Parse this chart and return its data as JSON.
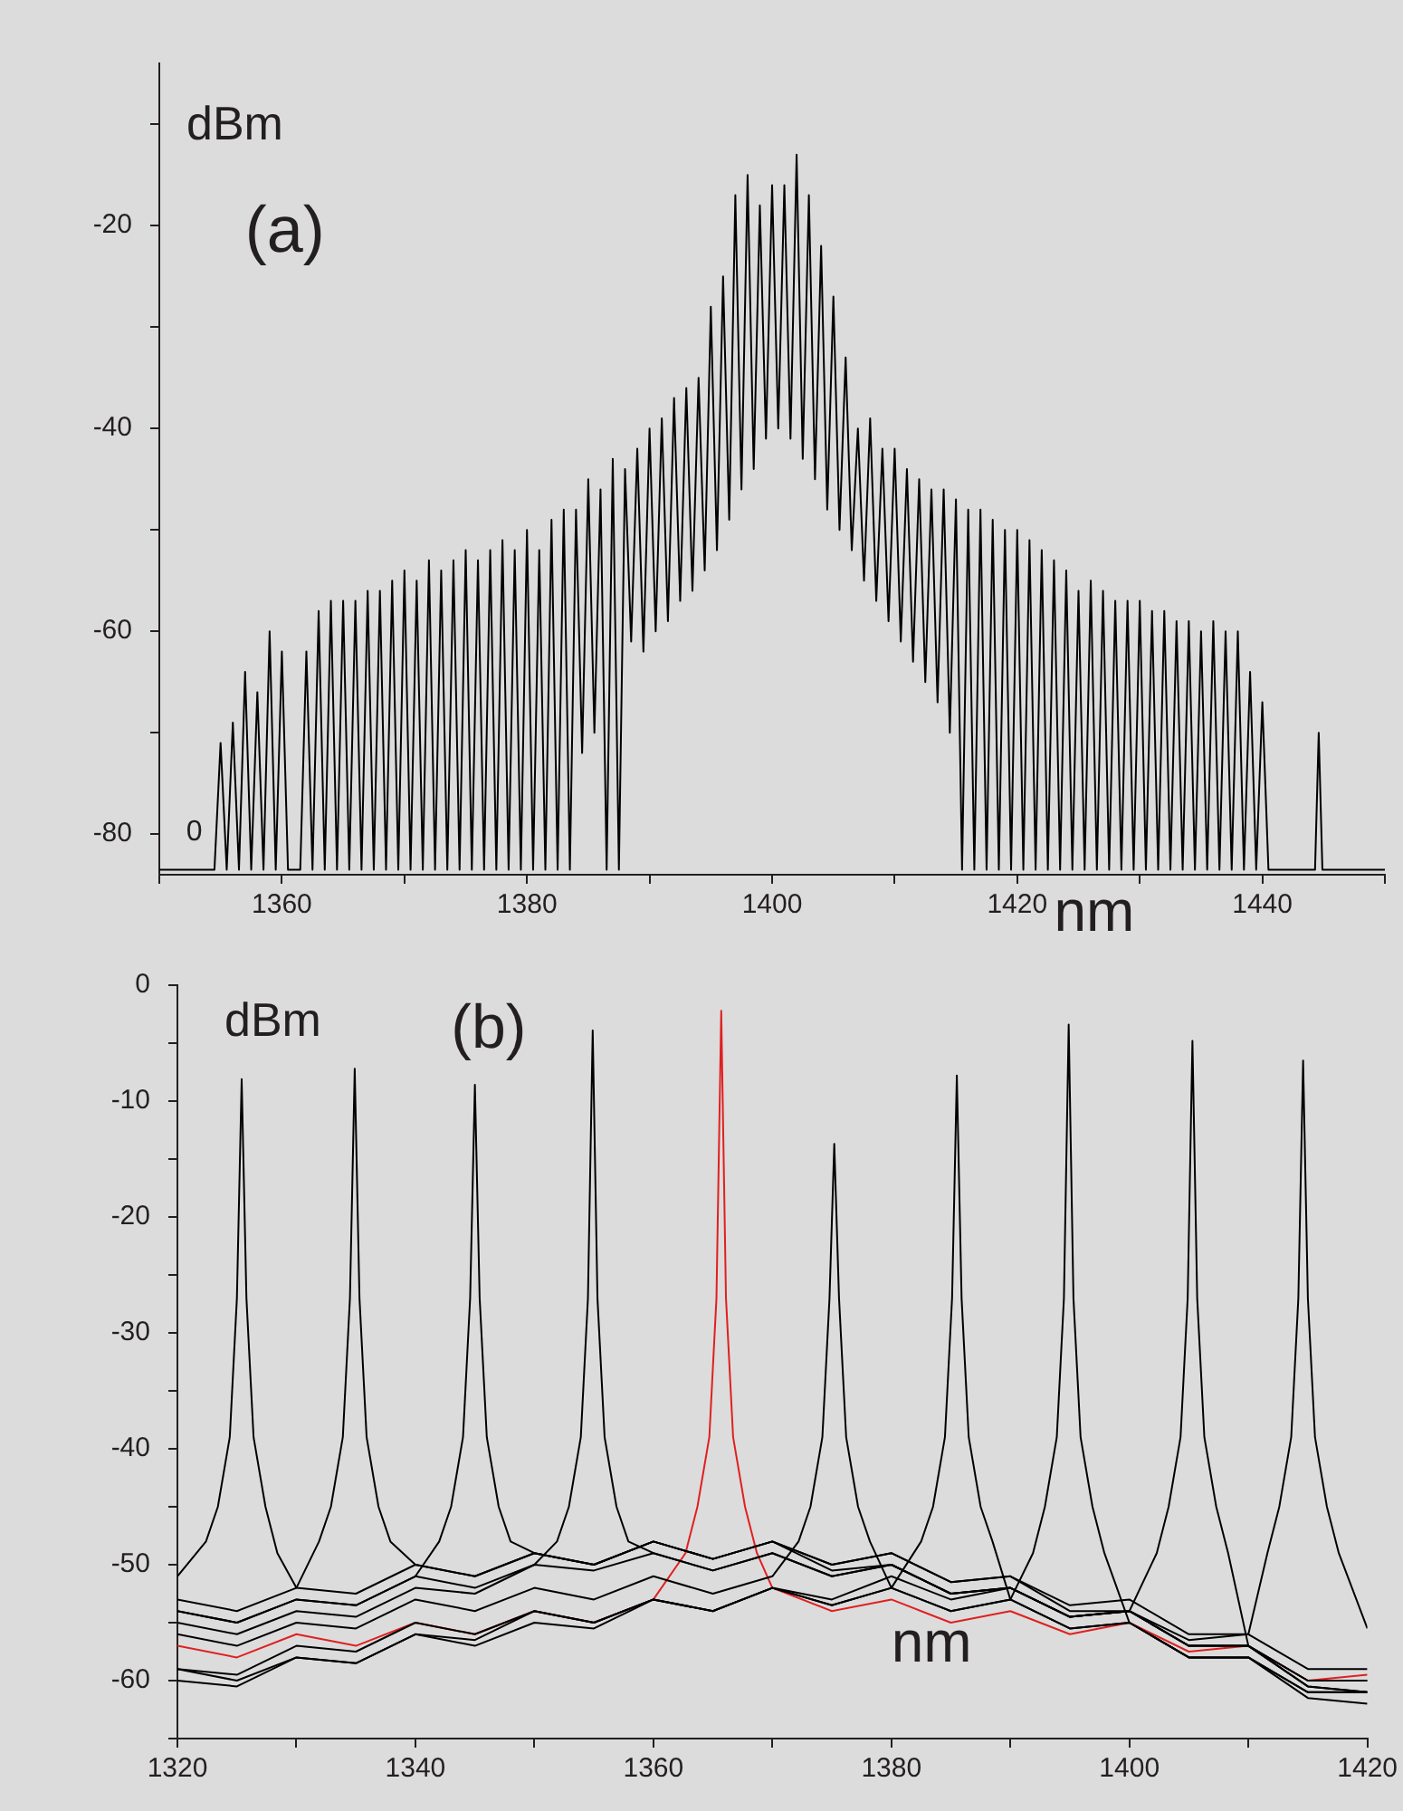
{
  "chart_data": [
    {
      "type": "line",
      "xlabel": "nm",
      "ylabel": "dBm",
      "annotations": [
        "(a)",
        "0"
      ],
      "marker": "none",
      "line_style": "solid",
      "legend": false,
      "xlim": [
        1350,
        1450
      ],
      "xticks": [
        {
          "value": 1350,
          "label": null
        },
        1360,
        {
          "value": 1370,
          "label": null
        },
        1380,
        {
          "value": 1390,
          "label": null
        },
        1400,
        {
          "value": 1410,
          "label": null
        },
        1420,
        {
          "value": 1430,
          "label": null
        },
        1440,
        {
          "value": 1450,
          "label": null
        }
      ],
      "ylim": [
        -84,
        -4
      ],
      "yticks": [
        -80,
        {
          "value": -70,
          "label": null
        },
        -60,
        {
          "value": -50,
          "label": null
        },
        -40,
        {
          "value": -30,
          "label": null
        },
        -20,
        {
          "value": -10,
          "label": null
        }
      ],
      "series": [
        {
          "color": "#000000",
          "x": [
            1350,
            1354.5,
            1355,
            1355.5,
            1356,
            1356.5,
            1357,
            1357.5,
            1358,
            1358.5,
            1359,
            1359.5,
            1360,
            1360.5,
            1361.5,
            1362,
            1362.5,
            1363,
            1363.5,
            1364,
            1364.5,
            1365,
            1365.5,
            1366,
            1366.5,
            1367,
            1367.5,
            1368,
            1368.5,
            1369,
            1369.5,
            1370,
            1370.5,
            1371,
            1371.5,
            1372,
            1372.5,
            1373,
            1373.5,
            1374,
            1374.5,
            1375,
            1375.5,
            1376,
            1376.5,
            1377,
            1377.5,
            1378,
            1378.5,
            1379,
            1379.5,
            1380,
            1380.5,
            1381,
            1381.5,
            1382,
            1382.5,
            1383,
            1383.5,
            1384,
            1384.5,
            1385,
            1385.5,
            1386,
            1386.5,
            1387,
            1387.5,
            1388,
            1388.5,
            1389,
            1389.5,
            1390,
            1390.5,
            1391,
            1391.5,
            1392,
            1392.5,
            1393,
            1393.5,
            1394,
            1394.5,
            1395,
            1395.5,
            1396,
            1396.5,
            1397,
            1397.5,
            1398,
            1398.5,
            1399,
            1399.5,
            1400,
            1400.5,
            1401,
            1401.5,
            1402,
            1402.5,
            1403,
            1403.5,
            1404,
            1404.5,
            1405,
            1405.5,
            1406,
            1406.5,
            1407,
            1407.5,
            1408,
            1408.5,
            1409,
            1409.5,
            1410,
            1410.5,
            1411,
            1411.5,
            1412,
            1412.5,
            1413,
            1413.5,
            1414,
            1414.5,
            1415,
            1415.5,
            1416,
            1416.5,
            1417,
            1417.5,
            1418,
            1418.5,
            1419,
            1419.5,
            1420,
            1420.5,
            1421,
            1421.5,
            1422,
            1422.5,
            1423,
            1423.5,
            1424,
            1424.5,
            1425,
            1425.5,
            1426,
            1426.5,
            1427,
            1427.5,
            1428,
            1428.5,
            1429,
            1429.5,
            1430,
            1430.5,
            1431,
            1431.5,
            1432,
            1432.5,
            1433,
            1433.5,
            1434,
            1434.5,
            1435,
            1435.5,
            1436,
            1436.5,
            1437,
            1437.5,
            1438,
            1438.5,
            1439,
            1439.5,
            1440,
            1440.5,
            1444.3,
            1444.6,
            1444.9,
            1450
          ],
          "values": [
            -83.5,
            -83.5,
            -71,
            -83.5,
            -69,
            -83.5,
            -64,
            -83.5,
            -66,
            -83.5,
            -60,
            -83.5,
            -62,
            -83.5,
            -83.5,
            -62,
            -83.5,
            -58,
            -83.5,
            -57,
            -83.5,
            -57,
            -83.5,
            -57,
            -83.5,
            -56,
            -83.5,
            -56,
            -83.5,
            -55,
            -83.5,
            -54,
            -83.5,
            -55,
            -83.5,
            -53,
            -83.5,
            -54,
            -83.5,
            -53,
            -83.5,
            -52,
            -83.5,
            -53,
            -83.5,
            -52,
            -83.5,
            -51,
            -83.5,
            -52,
            -83.5,
            -50,
            -83.5,
            -52,
            -83.5,
            -49,
            -83.5,
            -48,
            -83.5,
            -48,
            -72,
            -45,
            -70,
            -46,
            -83.5,
            -43,
            -83.5,
            -44,
            -61,
            -42,
            -62,
            -40,
            -60,
            -39,
            -59,
            -37,
            -57,
            -36,
            -56,
            -35,
            -54,
            -28,
            -52,
            -25,
            -49,
            -17,
            -46,
            -15,
            -44,
            -18,
            -41,
            -16,
            -40,
            -16,
            -41,
            -13,
            -43,
            -17,
            -45,
            -22,
            -48,
            -27,
            -50,
            -33,
            -52,
            -40,
            -55,
            -39,
            -57,
            -42,
            -59,
            -42,
            -61,
            -44,
            -63,
            -45,
            -65,
            -46,
            -67,
            -46,
            -70,
            -47,
            -83.5,
            -48,
            -83.5,
            -48,
            -83.5,
            -49,
            -83.5,
            -50,
            -83.5,
            -50,
            -83.5,
            -51,
            -83.5,
            -52,
            -83.5,
            -53,
            -83.5,
            -54,
            -83.5,
            -56,
            -83.5,
            -55,
            -83.5,
            -56,
            -83.5,
            -57,
            -83.5,
            -57,
            -83.5,
            -57,
            -83.5,
            -58,
            -83.5,
            -58,
            -83.5,
            -59,
            -83.5,
            -59,
            -83.5,
            -60,
            -83.5,
            -59,
            -83.5,
            -60,
            -83.5,
            -60,
            -83.5,
            -64,
            -83.5,
            -67,
            -83.5,
            -83.5,
            -70,
            -83.5,
            -83.5
          ]
        }
      ]
    },
    {
      "type": "line",
      "xlabel": "nm",
      "ylabel": "dBm",
      "annotations": [
        "(b)"
      ],
      "marker": "none",
      "line_style": "solid",
      "legend": false,
      "xlim": [
        1320,
        1420
      ],
      "xticks": [
        1320,
        {
          "value": 1330,
          "label": null
        },
        1340,
        {
          "value": 1350,
          "label": null
        },
        1360,
        {
          "value": 1370,
          "label": null
        },
        1380,
        {
          "value": 1390,
          "label": null
        },
        1400,
        {
          "value": 1410,
          "label": null
        },
        1420
      ],
      "ylim": [
        -65,
        0
      ],
      "yticks": [
        {
          "value": -65,
          "label": null
        },
        -60,
        {
          "value": -55,
          "label": null
        },
        -50,
        {
          "value": -45,
          "label": null
        },
        -40,
        {
          "value": -35,
          "label": null
        },
        -30,
        {
          "value": -25,
          "label": null
        },
        -20,
        {
          "value": -15,
          "label": null
        },
        -10,
        {
          "value": -5,
          "label": null
        },
        0
      ],
      "series": [
        {
          "color": "#000000",
          "x": [
            1320,
            1322.4,
            1323.4,
            1324.4,
            1325,
            1325.4,
            1325.8,
            1326.4,
            1327.4,
            1328.4,
            1330,
            1335,
            1340,
            1345,
            1350,
            1355,
            1360,
            1365,
            1370,
            1375,
            1380,
            1385,
            1390,
            1395,
            1400,
            1405,
            1410,
            1415,
            1420
          ],
          "values": [
            -51,
            -48,
            -45,
            -39,
            -27,
            -8.1,
            -27,
            -39,
            -45,
            -49,
            -52,
            -52.5,
            -50,
            -51,
            -49,
            -50,
            -48,
            -49.5,
            -48,
            -50,
            -49,
            -51.5,
            -51,
            -53.5,
            -53,
            -56,
            -56,
            -59,
            -59
          ]
        },
        {
          "color": "#000000",
          "x": [
            1320,
            1325,
            1330,
            1331.9,
            1332.9,
            1333.9,
            1334.5,
            1334.9,
            1335.3,
            1335.9,
            1336.9,
            1337.9,
            1340,
            1345,
            1350,
            1355,
            1360,
            1365,
            1370,
            1375,
            1380,
            1385,
            1390,
            1395,
            1400,
            1405,
            1410,
            1415,
            1420
          ],
          "values": [
            -53,
            -54,
            -52,
            -48,
            -45,
            -39,
            -27,
            -7.2,
            -27,
            -39,
            -45,
            -48,
            -50,
            -51,
            -49,
            -50,
            -48,
            -49.5,
            -48,
            -50,
            -49,
            -51.5,
            -51,
            -54,
            -54,
            -57,
            -57,
            -60,
            -60
          ]
        },
        {
          "color": "#000000",
          "x": [
            1320,
            1325,
            1330,
            1335,
            1340,
            1342,
            1343,
            1344,
            1344.6,
            1345,
            1345.4,
            1346,
            1347,
            1348,
            1350,
            1355,
            1360,
            1365,
            1370,
            1375,
            1380,
            1385,
            1390,
            1395,
            1400,
            1405,
            1410,
            1415,
            1420
          ],
          "values": [
            -54,
            -55,
            -53,
            -53.5,
            -51,
            -48,
            -45,
            -39,
            -27,
            -8.6,
            -27,
            -39,
            -45,
            -48,
            -49,
            -50,
            -48,
            -49.5,
            -48,
            -50.5,
            -50,
            -52.5,
            -52,
            -54.5,
            -54,
            -57,
            -57,
            -60,
            -60
          ]
        },
        {
          "color": "#000000",
          "x": [
            1320,
            1325,
            1330,
            1335,
            1340,
            1345,
            1350,
            1351.9,
            1352.9,
            1353.9,
            1354.5,
            1354.9,
            1355.3,
            1355.9,
            1356.9,
            1357.9,
            1360,
            1365,
            1370,
            1375,
            1380,
            1385,
            1390,
            1395,
            1400,
            1405,
            1410,
            1415,
            1420
          ],
          "values": [
            -55,
            -56,
            -54,
            -54.5,
            -52,
            -52.5,
            -50,
            -48,
            -45,
            -39,
            -27,
            -3.9,
            -27,
            -39,
            -45,
            -48,
            -49,
            -50.5,
            -49,
            -51,
            -50,
            -52.5,
            -52,
            -54.5,
            -54,
            -57,
            -57,
            -60.5,
            -61
          ]
        },
        {
          "color": "#000000",
          "x": [
            1320,
            1325,
            1330,
            1335,
            1340,
            1345,
            1350,
            1355,
            1360,
            1365,
            1370,
            1372.2,
            1373.2,
            1374.2,
            1374.8,
            1375.2,
            1375.6,
            1376.2,
            1377.2,
            1378.2,
            1380,
            1385,
            1390,
            1395,
            1400,
            1405,
            1410,
            1415,
            1420
          ],
          "values": [
            -56,
            -57,
            -55,
            -55.5,
            -53,
            -54,
            -52,
            -53,
            -51,
            -52.5,
            -51,
            -48,
            -45,
            -39,
            -27,
            -13.7,
            -27,
            -39,
            -45,
            -48,
            -52,
            -54,
            -53,
            -55.5,
            -55,
            -58,
            -58,
            -61,
            -61
          ]
        },
        {
          "color": "#000000",
          "x": [
            1320,
            1325,
            1330,
            1335,
            1340,
            1345,
            1350,
            1355,
            1360,
            1365,
            1370,
            1375,
            1380,
            1382.5,
            1383.5,
            1384.5,
            1385.1,
            1385.5,
            1385.9,
            1386.5,
            1387.5,
            1388.5,
            1390,
            1395,
            1400,
            1405,
            1410,
            1415,
            1420
          ],
          "values": [
            -59,
            -59.5,
            -57,
            -57.5,
            -55,
            -56,
            -54,
            -55,
            -53,
            -54,
            -52,
            -53.5,
            -52,
            -48,
            -45,
            -39,
            -27,
            -7.8,
            -27,
            -39,
            -45,
            -48,
            -53,
            -55.5,
            -55,
            -58,
            -58,
            -61,
            -61
          ]
        },
        {
          "color": "#000000",
          "x": [
            1320,
            1325,
            1330,
            1335,
            1340,
            1345,
            1350,
            1355,
            1360,
            1365,
            1370,
            1375,
            1380,
            1385,
            1390,
            1391.9,
            1392.9,
            1393.9,
            1394.5,
            1394.9,
            1395.3,
            1395.9,
            1396.9,
            1397.9,
            1400,
            1405,
            1410,
            1415,
            1420
          ],
          "values": [
            -60,
            -60.5,
            -58,
            -58.5,
            -56,
            -57,
            -55,
            -55.5,
            -53,
            -54,
            -52,
            -53.5,
            -52,
            -54,
            -53,
            -49,
            -45,
            -39,
            -27,
            -3.4,
            -27,
            -39,
            -45,
            -49,
            -55,
            -58,
            -58,
            -61.5,
            -62
          ]
        },
        {
          "color": "#000000",
          "x": [
            1320,
            1325,
            1330,
            1335,
            1340,
            1345,
            1350,
            1355,
            1360,
            1365,
            1370,
            1375,
            1380,
            1385,
            1390,
            1395,
            1400,
            1402.3,
            1403.3,
            1404.3,
            1404.9,
            1405.3,
            1405.7,
            1406.3,
            1407.3,
            1408.3,
            1410,
            1415,
            1420
          ],
          "values": [
            -59,
            -60,
            -58,
            -58.5,
            -56,
            -56.5,
            -54,
            -55,
            -53,
            -54,
            -52,
            -53,
            -51,
            -53,
            -52,
            -54.5,
            -54,
            -49,
            -45,
            -39,
            -27,
            -4.8,
            -27,
            -39,
            -45,
            -49,
            -57,
            -60.5,
            -61
          ]
        },
        {
          "color": "#000000",
          "x": [
            1320,
            1325,
            1330,
            1335,
            1340,
            1345,
            1350,
            1355,
            1360,
            1365,
            1370,
            1375,
            1380,
            1385,
            1390,
            1395,
            1400,
            1405,
            1410,
            1411.6,
            1412.6,
            1413.6,
            1414.2,
            1414.6,
            1415,
            1415.6,
            1416.6,
            1417.6,
            1420
          ],
          "values": [
            -54,
            -55,
            -53,
            -53.5,
            -51,
            -52,
            -50,
            -50.5,
            -49,
            -50.5,
            -49,
            -51,
            -50,
            -52.5,
            -52,
            -54.5,
            -54,
            -56.5,
            -56,
            -49,
            -45,
            -39,
            -27,
            -6.5,
            -27,
            -39,
            -45,
            -49,
            -55.5
          ]
        },
        {
          "color": "#e02020",
          "x": [
            1320,
            1325,
            1330,
            1335,
            1340,
            1345,
            1350,
            1355,
            1360,
            1362.7,
            1363.7,
            1364.7,
            1365.3,
            1365.7,
            1366.1,
            1366.7,
            1367.7,
            1368.7,
            1370,
            1375,
            1380,
            1385,
            1390,
            1395,
            1400,
            1405,
            1410,
            1415,
            1420
          ],
          "values": [
            -57,
            -58,
            -56,
            -57,
            -55,
            -56,
            -54,
            -55,
            -53,
            -49,
            -45,
            -39,
            -27,
            -2.2,
            -27,
            -39,
            -45,
            -49,
            -52,
            -54,
            -53,
            -55,
            -54,
            -56,
            -55,
            -57.5,
            -57,
            -60,
            -59.5
          ]
        }
      ]
    }
  ]
}
